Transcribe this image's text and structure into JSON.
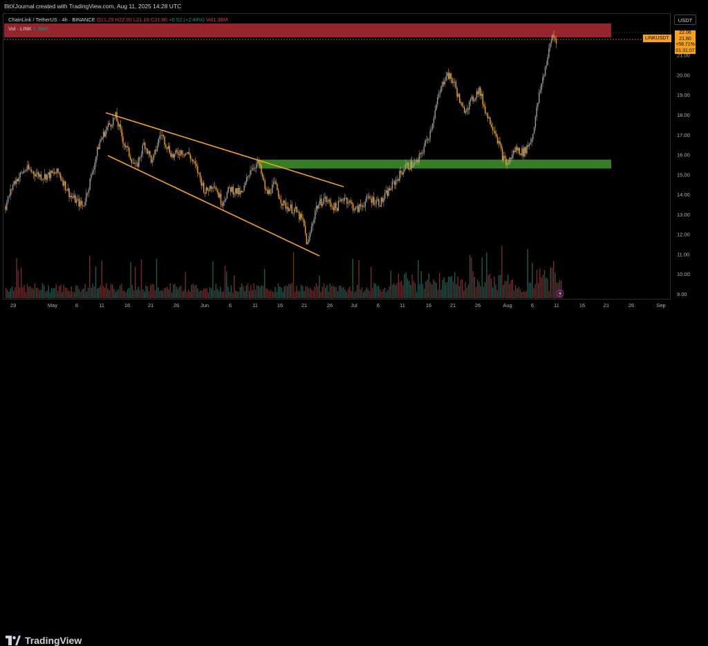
{
  "header": {
    "created_by": "BitXJournal created with TradingView.com, Aug 11, 2025 14:28 UTC"
  },
  "legend": {
    "symbol": "ChainLink / TetherUS · 4h · BINANCE",
    "open": "O21.29",
    "high": "H22.00",
    "low": "L21.19",
    "close": "C21.80",
    "change": "+0.52 (+2.44%)",
    "volume": "Vol1.38M"
  },
  "volume_legend": {
    "label": "Vol · LINK",
    "value": "1.38M"
  },
  "price_axis": {
    "currency": "USDT"
  },
  "symbol_tag": "LINKUSDT",
  "price_box": {
    "high": "22.06",
    "price": "21.80",
    "change": "+59.71%",
    "countdown": "01:31:07"
  },
  "footer": {
    "brand": "TradingView"
  },
  "colors": {
    "up": "#9aa0a6",
    "down": "#f7a21b",
    "trendline": "#f7a21b",
    "support_zone": "#3d8a2a",
    "resistance_zone": "#c8323a",
    "volume_up": "#1a5c52",
    "volume_down": "#7a2a2a"
  },
  "chart_data": {
    "type": "candlestick",
    "symbol": "LINKUSDT",
    "timeframe": "4h",
    "exchange": "BINANCE",
    "y_ticks": [
      "9.00",
      "10.00",
      "11.00",
      "12.00",
      "13.00",
      "14.00",
      "15.00",
      "16.00",
      "17.00",
      "18.00",
      "19.00",
      "20.00",
      "21.00",
      "22.00"
    ],
    "ylim": [
      9.0,
      22.1
    ],
    "x_ticks": [
      "23",
      "May",
      "6",
      "11",
      "16",
      "21",
      "26",
      "Jun",
      "6",
      "11",
      "16",
      "21",
      "26",
      "Jul",
      "6",
      "11",
      "16",
      "21",
      "26",
      "Aug",
      "6",
      "11",
      "16",
      "21",
      "26",
      "Sep"
    ],
    "price_path": [
      {
        "d": 0,
        "p": 13.4
      },
      {
        "d": 2,
        "p": 14.6
      },
      {
        "d": 5,
        "p": 15.3
      },
      {
        "d": 9,
        "p": 14.9
      },
      {
        "d": 13,
        "p": 15.1
      },
      {
        "d": 16,
        "p": 13.9
      },
      {
        "d": 19,
        "p": 13.4
      },
      {
        "d": 21,
        "p": 14.9
      },
      {
        "d": 23,
        "p": 16.6
      },
      {
        "d": 25,
        "p": 17.4
      },
      {
        "d": 27,
        "p": 17.9
      },
      {
        "d": 29,
        "p": 16.6
      },
      {
        "d": 32,
        "p": 15.3
      },
      {
        "d": 34,
        "p": 16.6
      },
      {
        "d": 36,
        "p": 15.6
      },
      {
        "d": 38,
        "p": 17.1
      },
      {
        "d": 41,
        "p": 15.9
      },
      {
        "d": 43,
        "p": 16.2
      },
      {
        "d": 45,
        "p": 16.0
      },
      {
        "d": 47,
        "p": 15.2
      },
      {
        "d": 49,
        "p": 14.1
      },
      {
        "d": 51,
        "p": 14.6
      },
      {
        "d": 53,
        "p": 13.6
      },
      {
        "d": 55,
        "p": 14.3
      },
      {
        "d": 58,
        "p": 14.0
      },
      {
        "d": 60,
        "p": 15.3
      },
      {
        "d": 62,
        "p": 15.6
      },
      {
        "d": 64,
        "p": 14.0
      },
      {
        "d": 66,
        "p": 14.5
      },
      {
        "d": 68,
        "p": 13.5
      },
      {
        "d": 71,
        "p": 13.2
      },
      {
        "d": 73,
        "p": 12.6
      },
      {
        "d": 74,
        "p": 11.4
      },
      {
        "d": 76,
        "p": 13.3
      },
      {
        "d": 78,
        "p": 13.8
      },
      {
        "d": 81,
        "p": 13.3
      },
      {
        "d": 83,
        "p": 13.9
      },
      {
        "d": 86,
        "p": 13.2
      },
      {
        "d": 89,
        "p": 13.8
      },
      {
        "d": 92,
        "p": 13.6
      },
      {
        "d": 95,
        "p": 14.5
      },
      {
        "d": 98,
        "p": 15.4
      },
      {
        "d": 101,
        "p": 15.6
      },
      {
        "d": 104,
        "p": 17.1
      },
      {
        "d": 106,
        "p": 18.8
      },
      {
        "d": 108,
        "p": 20.1
      },
      {
        "d": 110,
        "p": 19.6
      },
      {
        "d": 112,
        "p": 18.2
      },
      {
        "d": 114,
        "p": 18.6
      },
      {
        "d": 116,
        "p": 19.3
      },
      {
        "d": 118,
        "p": 18.0
      },
      {
        "d": 120,
        "p": 17.2
      },
      {
        "d": 122,
        "p": 15.8
      },
      {
        "d": 123,
        "p": 15.5
      },
      {
        "d": 125,
        "p": 16.3
      },
      {
        "d": 127,
        "p": 16.1
      },
      {
        "d": 129,
        "p": 16.8
      },
      {
        "d": 131,
        "p": 19.2
      },
      {
        "d": 133,
        "p": 21.0
      },
      {
        "d": 134,
        "p": 22.0
      },
      {
        "d": 135,
        "p": 21.8
      }
    ],
    "support_zone": [
      15.3,
      15.75
    ],
    "resistance_zone": [
      21.4,
      22.1
    ],
    "channel_upper": [
      {
        "d": 24,
        "p": 18.1
      },
      {
        "d": 79,
        "p": 14.4
      }
    ],
    "channel_lower": [
      {
        "d": 24,
        "p": 16.9
      },
      {
        "d": 76,
        "p": 10.9
      }
    ],
    "last_price": 21.8
  }
}
